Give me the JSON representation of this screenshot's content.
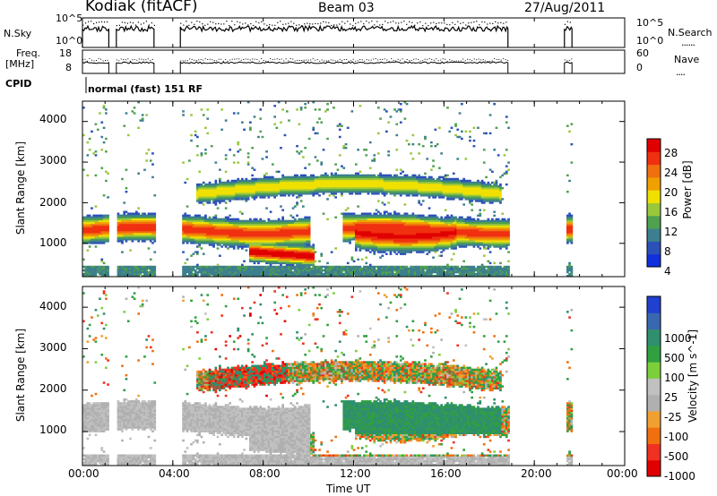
{
  "header": {
    "station": "Kodiak (fitACF)",
    "beam": "Beam 03",
    "date": "27/Aug/2011",
    "nsky_label": "N.Sky",
    "nsearch_label": "N.Search",
    "nsearch_style": "......",
    "freq_label_1": "Freq.",
    "freq_label_2": "[MHz]",
    "nave_label": "Nave",
    "nave_style": "....",
    "cpid_label": "CPID",
    "cpid_value": "normal (fast) 151 RF"
  },
  "noise_axes": {
    "left_top": "10^5",
    "left_bottom": "10^0",
    "right_top": "10^5",
    "right_bottom": "10^0"
  },
  "freq_axes": {
    "left_top": "18",
    "left_bottom": "8",
    "right_top": "60",
    "right_bottom": "0"
  },
  "colors": {
    "power_scale": [
      "#1030e0",
      "#2b50b8",
      "#3d7f8e",
      "#4fa04f",
      "#9ac83c",
      "#f0e000",
      "#f0a000",
      "#f07010",
      "#f03010",
      "#e00000"
    ],
    "velocity_scale": [
      "#2040d0",
      "#3a68b0",
      "#2f8f6f",
      "#30a040",
      "#7ccf3a",
      "#c0c0c0",
      "#b0b0b0",
      "#f0a030",
      "#f07010",
      "#f03020",
      "#e00000"
    ]
  },
  "chart_data": [
    {
      "type": "heatmap",
      "title": "Power",
      "xlabel": "Time UT",
      "ylabel": "Slant Range [km]",
      "xlim": [
        "00:00",
        "00:00"
      ],
      "ylim": [
        180,
        4500
      ],
      "x_ticks": [
        "00:00",
        "04:00",
        "08:00",
        "12:00",
        "16:00",
        "20:00",
        "00:00"
      ],
      "y_ticks": [
        1000,
        2000,
        3000,
        4000
      ],
      "colorbar": {
        "label": "Power [dB]",
        "ticks": [
          4,
          8,
          12,
          16,
          20,
          24,
          28
        ]
      },
      "data_segments_ut": [
        [
          "00:00",
          "01:10"
        ],
        [
          "01:30",
          "03:10"
        ],
        [
          "04:20",
          "18:50"
        ],
        [
          "21:20",
          "21:40"
        ]
      ],
      "features": [
        {
          "name": "main band",
          "range_km": [
            900,
            1700
          ],
          "max_db": 30
        },
        {
          "name": "near range low band",
          "time_ut": [
            "07:30",
            "10:00"
          ],
          "range_km": [
            600,
            900
          ],
          "max_db": 30
        },
        {
          "name": "upper arc",
          "time_ut": [
            "05:00",
            "18:30"
          ],
          "range_km": [
            1800,
            3000
          ]
        }
      ]
    },
    {
      "type": "heatmap",
      "title": "Velocity",
      "xlabel": "Time UT",
      "ylabel": "Slant Range [km]",
      "xlim": [
        "00:00",
        "00:00"
      ],
      "ylim": [
        180,
        4500
      ],
      "x_ticks": [
        "00:00",
        "04:00",
        "08:00",
        "12:00",
        "16:00",
        "20:00",
        "00:00"
      ],
      "x_tick_labels": [
        "00:00",
        "04:00",
        "08:00",
        "12:00",
        "16:00",
        "20:00",
        "00:00"
      ],
      "y_ticks": [
        1000,
        2000,
        3000,
        4000
      ],
      "colorbar": {
        "label": "Velocity [m s^-1]",
        "ticks": [
          1000,
          500,
          100,
          25,
          -25,
          -100,
          -500,
          -1000
        ]
      },
      "features": [
        {
          "name": "ground scatter",
          "color": "grey"
        },
        {
          "name": "ionospheric scatter",
          "time_ut": [
            "10:00",
            "18:30"
          ],
          "range_km": [
            900,
            1800
          ],
          "velocity": "100 to 500"
        }
      ]
    }
  ]
}
